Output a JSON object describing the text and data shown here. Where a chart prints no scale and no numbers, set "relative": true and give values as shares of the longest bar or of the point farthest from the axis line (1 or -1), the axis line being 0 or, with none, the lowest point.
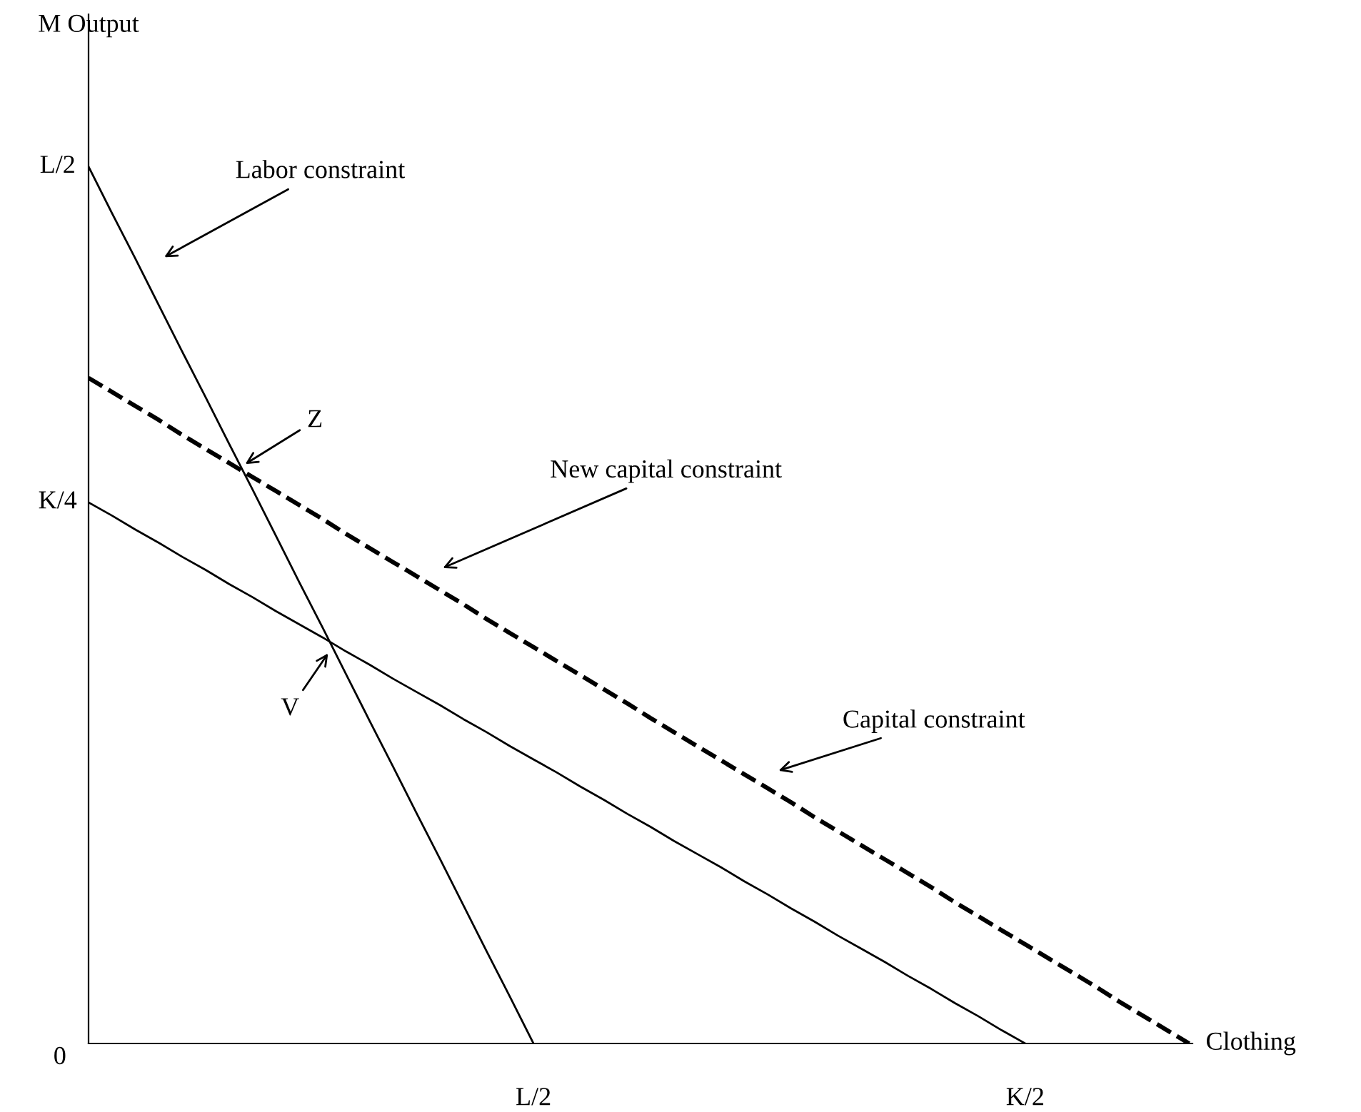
{
  "chart_data": {
    "type": "line",
    "relative": true,
    "xlabel": "Clothing",
    "categories": [
      null,
      null,
      null,
      null,
      null,
      null,
      null,
      null,
      null,
      null,
      null,
      null,
      null,
      null,
      null,
      null,
      null,
      null,
      null,
      "L/2",
      null,
      null,
      null,
      null,
      null,
      null,
      null,
      null,
      null,
      null,
      null,
      null,
      null,
      null,
      null,
      null,
      null,
      null,
      null,
      null,
      "K/2",
      null,
      null,
      null,
      null,
      null,
      null,
      null
    ],
    "series": [
      {
        "color": "#000000",
        "line_style": "solid",
        "values": [
          1,
          0.947,
          0.895,
          0.842,
          0.789,
          0.737,
          0.684,
          0.632,
          0.579,
          0.526,
          0.474,
          0.421,
          0.368,
          0.316,
          0.263,
          0.211,
          0.158,
          0.105,
          0.053,
          0,
          null,
          null,
          null,
          null,
          null,
          null,
          null,
          null,
          null,
          null,
          null,
          null,
          null,
          null,
          null,
          null,
          null,
          null,
          null,
          null,
          null,
          null,
          null,
          null,
          null,
          null,
          null,
          null
        ]
      },
      {
        "color": "#000000",
        "line_style": "solid",
        "values": [
          0.617,
          0.602,
          0.586,
          0.571,
          0.555,
          0.54,
          0.524,
          0.509,
          0.493,
          0.478,
          0.463,
          0.447,
          0.432,
          0.416,
          0.401,
          0.386,
          0.37,
          0.355,
          0.339,
          0.324,
          0.309,
          0.293,
          0.278,
          0.262,
          0.247,
          0.231,
          0.216,
          0.201,
          0.185,
          0.17,
          0.154,
          0.139,
          0.123,
          0.108,
          0.093,
          0.077,
          0.062,
          0.046,
          0.031,
          0.015,
          0,
          null,
          null,
          null,
          null,
          null,
          null,
          null
        ]
      },
      {
        "color": "#000000",
        "line_style": "dashed",
        "values": [
          0.759,
          0.743,
          0.727,
          0.711,
          0.694,
          0.678,
          0.662,
          0.646,
          0.63,
          0.614,
          0.598,
          0.581,
          0.565,
          0.549,
          0.533,
          0.517,
          0.501,
          0.484,
          0.468,
          0.452,
          0.436,
          0.42,
          0.404,
          0.388,
          0.371,
          0.355,
          0.339,
          0.323,
          0.307,
          0.291,
          0.275,
          0.258,
          0.242,
          0.226,
          0.21,
          0.194,
          0.178,
          0.161,
          0.145,
          0.129,
          0.113,
          0.097,
          0.081,
          0.065,
          0.048,
          0.032,
          0.016,
          0
        ]
      }
    ],
    "annotations": [
      "Labor constraint",
      "Z",
      "New capital constraint",
      "V",
      "Capital constraint",
      "0",
      "K/4",
      "L/2",
      "M Output"
    ],
    "marker": "none"
  }
}
